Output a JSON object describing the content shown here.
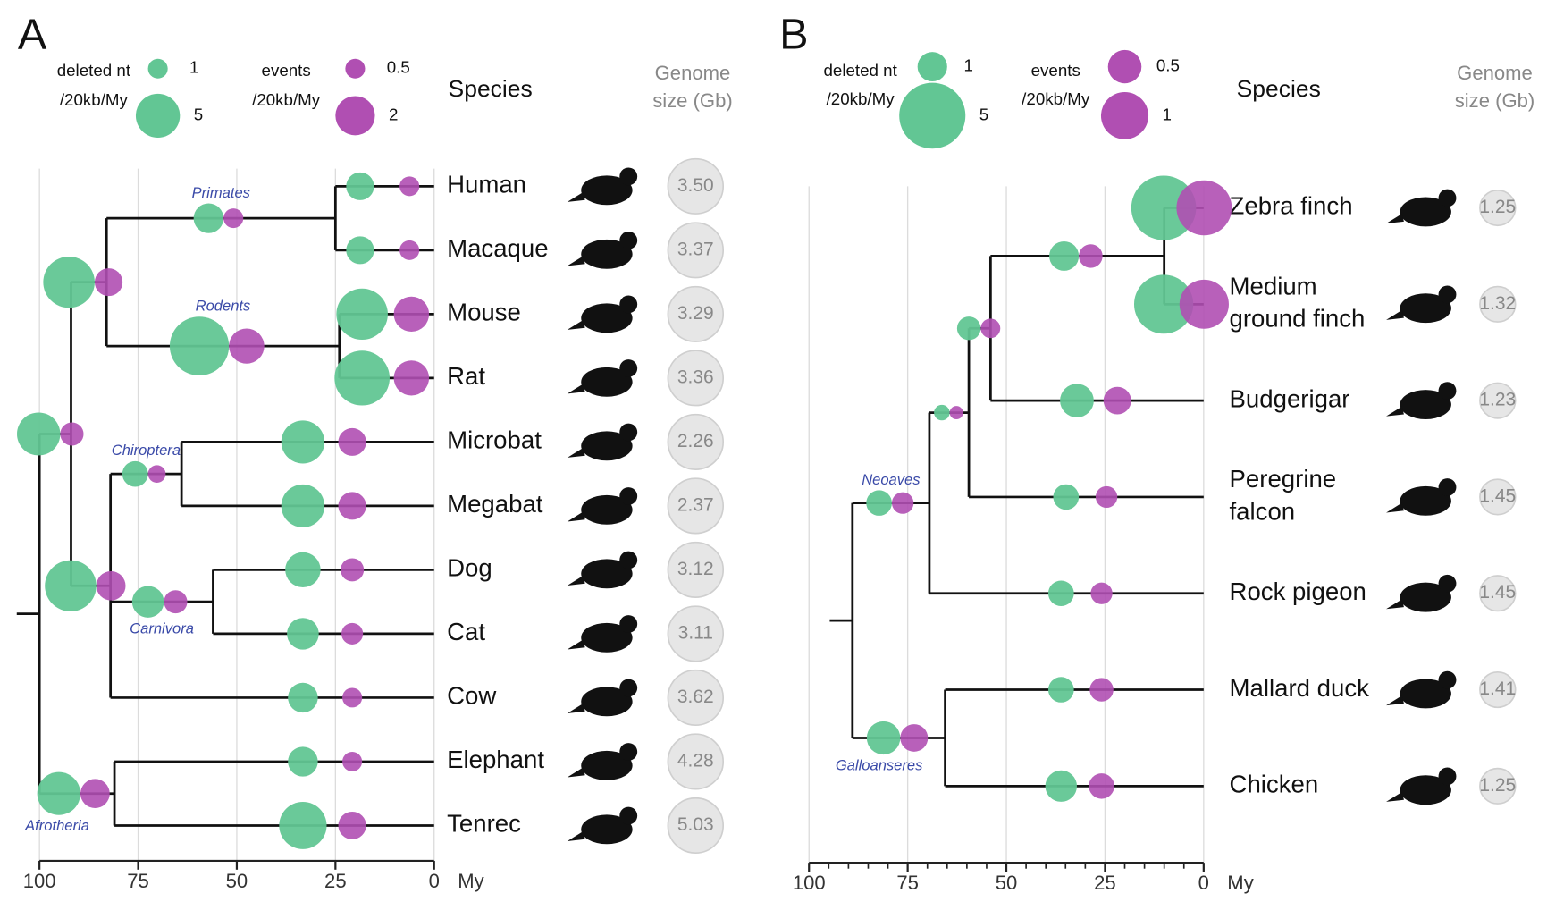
{
  "panels": [
    {
      "letter": "A",
      "legend": {
        "deleted": {
          "label": [
            "deleted nt",
            "/20kb/My"
          ],
          "sizes": [
            1,
            5
          ]
        },
        "events": {
          "label": [
            "events",
            "/20kb/My"
          ],
          "sizes": [
            0.5,
            2
          ]
        }
      },
      "species_header": "Species",
      "genome_header": [
        "Genome",
        "size (Gb)"
      ],
      "axis": {
        "lim": [
          100,
          0
        ],
        "ticks": [
          100,
          75,
          50,
          25,
          0
        ],
        "minor_ticks": [],
        "unit": "My",
        "grid": true
      },
      "tree": {
        "age": 100,
        "children": [
          {
            "age": 92,
            "deleted": 4.8,
            "events": 0.7,
            "children": [
              {
                "age": 83,
                "deleted": 6.8,
                "events": 1.0,
                "children": [
                  {
                    "label": "Primates",
                    "age": 25,
                    "deleted": 2.3,
                    "events": 0.5,
                    "children": [
                      {
                        "name": "Human",
                        "genome": "3.50",
                        "deleted": 2.0,
                        "events": 0.5
                      },
                      {
                        "name": "Macaque",
                        "genome": "3.37",
                        "deleted": 2.0,
                        "events": 0.5
                      }
                    ]
                  },
                  {
                    "label": "Rodents",
                    "age": 24,
                    "deleted": 9.0,
                    "events": 1.6,
                    "children": [
                      {
                        "name": "Mouse",
                        "genome": "3.29",
                        "deleted": 6.8,
                        "events": 1.6
                      },
                      {
                        "name": "Rat",
                        "genome": "3.36",
                        "deleted": 7.8,
                        "events": 1.6
                      }
                    ]
                  }
                ]
              },
              {
                "age": 82,
                "deleted": 6.8,
                "events": 1.1,
                "children": [
                  {
                    "label": "Chiroptera",
                    "age": 64,
                    "deleted": 1.7,
                    "events": 0.4,
                    "children": [
                      {
                        "name": "Microbat",
                        "genome": "2.26",
                        "deleted": 4.8,
                        "events": 1.0
                      },
                      {
                        "name": "Megabat",
                        "genome": "2.37",
                        "deleted": 4.8,
                        "events": 1.0
                      }
                    ]
                  },
                  {
                    "label": "Carnivora",
                    "age": 56,
                    "deleted": 2.6,
                    "events": 0.7,
                    "children": [
                      {
                        "name": "Dog",
                        "genome": "3.12",
                        "deleted": 3.2,
                        "events": 0.7
                      },
                      {
                        "name": "Cat",
                        "genome": "3.11",
                        "deleted": 2.6,
                        "events": 0.6
                      }
                    ]
                  },
                  {
                    "name": "Cow",
                    "genome": "3.62",
                    "deleted": 2.3,
                    "events": 0.5
                  }
                ]
              }
            ]
          },
          {
            "label": "Afrotheria",
            "age": 81,
            "deleted": 4.8,
            "events": 1.1,
            "children": [
              {
                "name": "Elephant",
                "genome": "4.28",
                "deleted": 2.3,
                "events": 0.5
              },
              {
                "name": "Tenrec",
                "genome": "5.03",
                "deleted": 5.8,
                "events": 1.0
              }
            ]
          }
        ]
      }
    },
    {
      "letter": "B",
      "legend": {
        "deleted": {
          "label": [
            "deleted nt",
            "/20kb/My"
          ],
          "sizes": [
            1,
            5
          ]
        },
        "events": {
          "label": [
            "events",
            "/20kb/My"
          ],
          "sizes": [
            0.5,
            1
          ]
        }
      },
      "species_header": "Species",
      "genome_header": [
        "Genome",
        "size (Gb)"
      ],
      "axis": {
        "lim": [
          100,
          0
        ],
        "ticks": [
          100,
          75,
          50,
          25,
          0
        ],
        "minor_ticks": [
          95,
          90,
          85,
          80,
          70,
          65,
          60,
          55,
          45,
          40,
          35,
          30,
          20,
          15,
          10,
          5
        ],
        "unit": "My",
        "grid": true
      },
      "tree": {
        "age": 89,
        "children": [
          {
            "label": "Neoaves",
            "age": 69.5,
            "deleted": 0.75,
            "events": 0.21,
            "children": [
              {
                "age": 59.5,
                "deleted": 0.28,
                "events": 0.08,
                "children": [
                  {
                    "age": 54,
                    "deleted": 0.64,
                    "events": 0.17,
                    "children": [
                      {
                        "age": 10,
                        "deleted": 1.0,
                        "events": 0.25,
                        "children": [
                          {
                            "name": "Zebra finch",
                            "genome": "1.25",
                            "deleted": 4.8,
                            "events": 1.36
                          },
                          {
                            "name": [
                              "Medium",
                              "ground finch"
                            ],
                            "genome": "1.32",
                            "deleted": 4.0,
                            "events": 1.08
                          }
                        ]
                      },
                      {
                        "name": "Budgerigar",
                        "genome": "1.23",
                        "deleted": 1.3,
                        "events": 0.34
                      }
                    ]
                  },
                  {
                    "name": [
                      "Peregrine",
                      "falcon"
                    ],
                    "genome": "1.45",
                    "deleted": 0.75,
                    "events": 0.21
                  }
                ]
              },
              {
                "name": "Rock pigeon",
                "genome": "1.45",
                "deleted": 0.75,
                "events": 0.21
              }
            ]
          },
          {
            "label": "Galloanseres",
            "age": 65.5,
            "deleted": 1.28,
            "events": 0.34,
            "children": [
              {
                "name": "Mallard duck",
                "genome": "1.41",
                "deleted": 0.75,
                "events": 0.25
              },
              {
                "name": "Chicken",
                "genome": "1.25",
                "deleted": 1.14,
                "events": 0.29
              }
            ]
          }
        ]
      }
    }
  ]
}
